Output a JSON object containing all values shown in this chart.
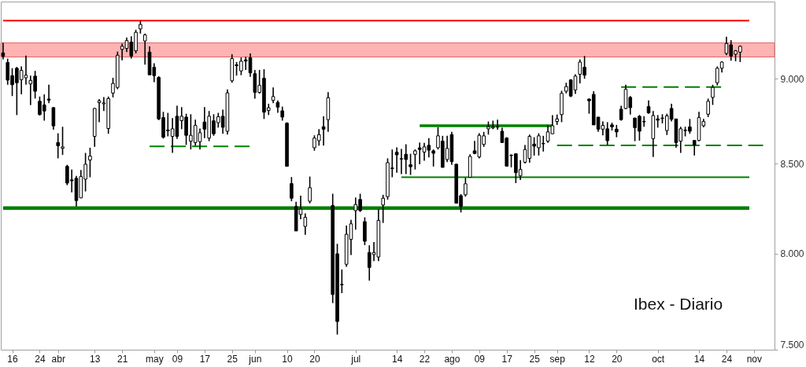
{
  "chart_data": {
    "type": "candlestick",
    "title": "Ibex - Diario",
    "color": "#000000",
    "log": "y",
    "categories": [
      null,
      null,
      "16",
      null,
      null,
      null,
      null,
      null,
      "24",
      null,
      null,
      null,
      "abr",
      null,
      null,
      null,
      null,
      null,
      null,
      null,
      "13",
      null,
      null,
      null,
      null,
      null,
      "21",
      null,
      null,
      null,
      null,
      null,
      null,
      "may",
      null,
      null,
      null,
      null,
      "09",
      null,
      null,
      null,
      null,
      null,
      "17",
      null,
      null,
      null,
      null,
      null,
      "25",
      null,
      null,
      null,
      null,
      "jun",
      null,
      null,
      null,
      null,
      null,
      null,
      "10",
      null,
      null,
      null,
      null,
      null,
      "20",
      null,
      null,
      null,
      null,
      null,
      null,
      null,
      null,
      "jul",
      null,
      null,
      null,
      null,
      null,
      null,
      null,
      null,
      "14",
      null,
      null,
      null,
      null,
      null,
      "22",
      null,
      null,
      null,
      null,
      null,
      "ago",
      null,
      null,
      null,
      null,
      null,
      "09",
      null,
      null,
      null,
      null,
      null,
      "17",
      null,
      null,
      null,
      null,
      null,
      "25",
      null,
      null,
      null,
      null,
      "sep",
      null,
      null,
      null,
      null,
      null,
      null,
      "12",
      null,
      null,
      null,
      null,
      null,
      "20",
      null,
      null,
      null,
      null,
      null,
      null,
      null,
      null,
      "oct",
      null,
      null,
      null,
      null,
      null,
      null,
      null,
      null,
      "14",
      null,
      null,
      null,
      null,
      null,
      "24",
      null,
      null,
      null,
      null,
      null,
      "nov",
      null,
      null,
      null,
      null
    ],
    "ylim": [
      7500,
      9480
    ],
    "yticks": [
      {
        "value": 7500,
        "label": "7.500"
      },
      {
        "value": 8000,
        "label": "8.000"
      },
      {
        "value": 8500,
        "label": "8.500"
      },
      {
        "value": 9000,
        "label": "9.000"
      }
    ],
    "ohlc": [
      [
        9158,
        9220,
        9118,
        9137
      ],
      [
        9099,
        9123,
        8964,
        8992
      ],
      [
        9019,
        9064,
        8896,
        8964
      ],
      [
        9064,
        9072,
        8783,
        8976
      ],
      [
        8995,
        9075,
        8906,
        9051
      ],
      [
        9006,
        9142,
        8964,
        9022
      ],
      [
        8969,
        9019,
        8842,
        8990
      ],
      [
        9016,
        9048,
        8881,
        8925
      ],
      [
        8865,
        8893,
        8780,
        8786
      ],
      [
        8843,
        8906,
        8750,
        8807
      ],
      [
        8878,
        8964,
        8854,
        8872
      ],
      [
        8827,
        8830,
        8697,
        8719
      ],
      [
        8622,
        8676,
        8531,
        8603
      ],
      [
        8589,
        8714,
        8551,
        8597
      ],
      [
        8485,
        8494,
        8378,
        8390
      ],
      [
        8408,
        8467,
        8338,
        8403
      ],
      [
        8417,
        8431,
        8259,
        8292
      ],
      [
        8307,
        8464,
        8305,
        8427
      ],
      [
        8412,
        8562,
        8343,
        8497
      ],
      [
        8521,
        8592,
        8423,
        8544
      ],
      [
        8658,
        8825,
        8597,
        8822
      ],
      [
        8857,
        8878,
        8741,
        8867
      ],
      [
        8850,
        8890,
        8807,
        8855
      ],
      [
        8704,
        8893,
        8673,
        8881
      ],
      [
        8914,
        9006,
        8888,
        8972
      ],
      [
        8948,
        9166,
        8937,
        9144
      ],
      [
        9180,
        9216,
        9113,
        9199
      ],
      [
        9186,
        9253,
        9163,
        9234
      ],
      [
        9225,
        9261,
        9123,
        9139
      ],
      [
        9171,
        9302,
        9155,
        9286
      ],
      [
        9307,
        9357,
        9278,
        9335
      ],
      [
        9232,
        9278,
        9086,
        9270
      ],
      [
        9163,
        9199,
        9024,
        9024
      ],
      [
        9070,
        9094,
        8980,
        9019
      ],
      [
        9008,
        9016,
        8753,
        8760
      ],
      [
        8768,
        8802,
        8645,
        8653
      ],
      [
        8695,
        8796,
        8658,
        8690
      ],
      [
        8658,
        8765,
        8562,
        8702
      ],
      [
        8776,
        8838,
        8643,
        8658
      ],
      [
        8750,
        8830,
        8700,
        8776
      ],
      [
        8771,
        8791,
        8608,
        8664
      ],
      [
        8630,
        8788,
        8582,
        8664
      ],
      [
        8622,
        8756,
        8603,
        8722
      ],
      [
        8627,
        8704,
        8582,
        8679
      ],
      [
        8742,
        8830,
        8648,
        8700
      ],
      [
        8648,
        8807,
        8630,
        8776
      ],
      [
        8749,
        8788,
        8661,
        8673
      ],
      [
        8738,
        8796,
        8709,
        8773
      ],
      [
        8776,
        8815,
        8673,
        8711
      ],
      [
        8688,
        8936,
        8668,
        8915
      ],
      [
        8988,
        9150,
        8976,
        9123
      ],
      [
        9085,
        9102,
        9019,
        9080
      ],
      [
        9048,
        9130,
        9022,
        9107
      ],
      [
        9115,
        9134,
        9054,
        9108
      ],
      [
        9128,
        9155,
        9012,
        9036
      ],
      [
        9031,
        9054,
        8881,
        8918
      ],
      [
        8918,
        9054,
        8910,
        8960
      ],
      [
        9003,
        9058,
        8760,
        8800
      ],
      [
        8810,
        8850,
        8783,
        8826
      ],
      [
        8870,
        8948,
        8854,
        8893
      ],
      [
        8858,
        8870,
        8796,
        8830
      ],
      [
        8808,
        8833,
        8750,
        8771
      ],
      [
        8735,
        8740,
        8484,
        8485
      ],
      [
        8387,
        8424,
        8288,
        8305
      ],
      [
        8259,
        8285,
        8124,
        8124
      ],
      [
        8215,
        8319,
        8188,
        8244
      ],
      [
        8149,
        8221,
        8103,
        8199
      ],
      [
        8288,
        8427,
        8276,
        8364
      ],
      [
        8592,
        8664,
        8575,
        8648
      ],
      [
        8633,
        8700,
        8604,
        8668
      ],
      [
        8714,
        8776,
        8604,
        8700
      ],
      [
        8756,
        8920,
        8684,
        8886
      ],
      [
        8264,
        8330,
        7739,
        7784
      ],
      [
        8000,
        8054,
        7577,
        7644
      ],
      [
        7837,
        7916,
        7791,
        7835
      ],
      [
        7944,
        8154,
        7930,
        8106
      ],
      [
        8078,
        8185,
        7993,
        8163
      ],
      [
        8236,
        8309,
        8131,
        8270
      ],
      [
        8298,
        8330,
        8229,
        8236
      ],
      [
        8175,
        8199,
        8047,
        8068
      ],
      [
        8007,
        8046,
        7857,
        7927
      ],
      [
        7996,
        8064,
        7961,
        8007
      ],
      [
        7983,
        8244,
        7961,
        8182
      ],
      [
        8267,
        8324,
        8168,
        8305
      ],
      [
        8314,
        8531,
        8297,
        8506
      ],
      [
        8472,
        8582,
        8423,
        8476
      ],
      [
        8566,
        8594,
        8449,
        8551
      ],
      [
        8529,
        8585,
        8441,
        8527
      ],
      [
        8554,
        8612,
        8441,
        8524
      ],
      [
        8494,
        8557,
        8436,
        8483
      ],
      [
        8554,
        8582,
        8467,
        8574
      ],
      [
        8591,
        8622,
        8497,
        8582
      ],
      [
        8567,
        8620,
        8517,
        8597
      ],
      [
        8606,
        8648,
        8536,
        8578
      ],
      [
        8574,
        8582,
        8484,
        8560
      ],
      [
        8592,
        8711,
        8582,
        8661
      ],
      [
        8630,
        8661,
        8479,
        8479
      ],
      [
        8524,
        8661,
        8509,
        8588
      ],
      [
        8668,
        8684,
        8494,
        8512
      ],
      [
        8497,
        8500,
        8277,
        8277
      ],
      [
        8319,
        8328,
        8226,
        8259
      ],
      [
        8324,
        8420,
        8314,
        8386
      ],
      [
        8423,
        8554,
        8423,
        8542
      ],
      [
        8574,
        8632,
        8554,
        8559
      ],
      [
        8539,
        8676,
        8531,
        8664
      ],
      [
        8611,
        8684,
        8597,
        8661
      ],
      [
        8702,
        8745,
        8668,
        8714
      ],
      [
        8707,
        8750,
        8700,
        8714
      ],
      [
        8714,
        8756,
        8697,
        8712
      ],
      [
        8688,
        8709,
        8622,
        8622
      ],
      [
        8648,
        8653,
        8484,
        8486
      ],
      [
        8549,
        8554,
        8479,
        8547
      ],
      [
        8557,
        8560,
        8390,
        8449
      ],
      [
        8431,
        8521,
        8408,
        8467
      ],
      [
        8509,
        8608,
        8502,
        8582
      ],
      [
        8531,
        8668,
        8506,
        8658
      ],
      [
        8613,
        8653,
        8547,
        8601
      ],
      [
        8592,
        8676,
        8547,
        8661
      ],
      [
        8617,
        8661,
        8570,
        8615
      ],
      [
        8630,
        8722,
        8620,
        8684
      ],
      [
        8673,
        8783,
        8673,
        8720
      ],
      [
        8745,
        8786,
        8725,
        8760
      ],
      [
        8786,
        8928,
        8741,
        8912
      ],
      [
        8925,
        8976,
        8912,
        8953
      ],
      [
        8993,
        8998,
        8890,
        8896
      ],
      [
        8933,
        9027,
        8909,
        9016
      ],
      [
        9027,
        9118,
        8972,
        9102
      ],
      [
        9070,
        9139,
        9000,
        9022
      ],
      [
        8878,
        8881,
        8791,
        8868
      ],
      [
        8906,
        8925,
        8725,
        8725
      ],
      [
        8771,
        8771,
        8684,
        8700
      ],
      [
        8700,
        8745,
        8664,
        8722
      ],
      [
        8702,
        8741,
        8608,
        8633
      ],
      [
        8725,
        8738,
        8692,
        8714
      ],
      [
        8700,
        8725,
        8653,
        8684
      ],
      [
        8818,
        8838,
        8750,
        8756
      ],
      [
        8822,
        8964,
        8818,
        8936
      ],
      [
        8888,
        8896,
        8786,
        8827
      ],
      [
        8765,
        8768,
        8630,
        8709
      ],
      [
        8776,
        8783,
        8633,
        8688
      ],
      [
        8745,
        8776,
        8714,
        8743
      ],
      [
        8833,
        8870,
        8791,
        8796
      ],
      [
        8645,
        8807,
        8539,
        8780
      ],
      [
        8760,
        8783,
        8709,
        8753
      ],
      [
        8765,
        8788,
        8734,
        8763
      ],
      [
        8692,
        8791,
        8666,
        8778
      ],
      [
        8822,
        8850,
        8745,
        8758
      ],
      [
        8760,
        8762,
        8592,
        8622
      ],
      [
        8630,
        8714,
        8562,
        8702
      ],
      [
        8694,
        8714,
        8658,
        8692
      ],
      [
        8713,
        8760,
        8673,
        8688
      ],
      [
        8634,
        8635,
        8547,
        8608
      ],
      [
        8634,
        8802,
        8630,
        8768
      ],
      [
        8720,
        8760,
        8711,
        8745
      ],
      [
        8788,
        8881,
        8771,
        8865
      ],
      [
        8888,
        8964,
        8843,
        8948
      ],
      [
        8976,
        9075,
        8960,
        9064
      ],
      [
        9064,
        9107,
        9038,
        9102
      ],
      [
        9155,
        9258,
        9144,
        9216
      ],
      [
        9208,
        9237,
        9110,
        9139
      ],
      [
        9150,
        9176,
        9107,
        9171
      ],
      [
        9163,
        9204,
        9102,
        9199
      ],
      null,
      null,
      null,
      null,
      null,
      null,
      null
    ],
    "series": [
      {
        "type": "line",
        "color": "#ff0000",
        "values": [
          9359,
          9359,
          9359,
          9359,
          9359,
          9359,
          9359,
          9359,
          9359,
          9359,
          9359,
          9359,
          9359,
          9359,
          9359,
          9359,
          9359,
          9359,
          9359,
          9359,
          9359,
          9359,
          9359,
          9359,
          9359,
          9359,
          9359,
          9359,
          9359,
          9359,
          9359,
          9359,
          9359,
          9359,
          9359,
          9359,
          9359,
          9359,
          9359,
          9359,
          9359,
          9359,
          9359,
          9359,
          9359,
          9359,
          9359,
          9359,
          9359,
          9359,
          9359,
          9359,
          9359,
          9359,
          9359,
          9359,
          9359,
          9359,
          9359,
          9359,
          9359,
          9359,
          9359,
          9359,
          9359,
          9359,
          9359,
          9359,
          9359,
          9359,
          9359,
          9359,
          9359,
          9359,
          9359,
          9359,
          9359,
          9359,
          9359,
          9359,
          9359,
          9359,
          9359,
          9359,
          9359,
          9359,
          9359,
          9359,
          9359,
          9359,
          9359,
          9359,
          9359,
          9359,
          9359,
          9359,
          9359,
          9359,
          9359,
          9359,
          9359,
          9359,
          9359,
          9359,
          9359,
          9359,
          9359,
          9359,
          9359,
          9359,
          9359,
          9359,
          9359,
          9359,
          9359,
          9359,
          9359,
          9359,
          9359,
          9359,
          9359,
          9359,
          9359,
          9359,
          9359,
          9359,
          9359,
          9359,
          9359,
          9359,
          9359,
          9359,
          9359,
          9359,
          9359,
          9359,
          9359,
          9359,
          9359,
          9359,
          9359,
          9359,
          9359,
          9359,
          9359,
          9359,
          9359,
          9359,
          9359,
          9359,
          9359,
          9359,
          9359,
          9359,
          9359,
          9359,
          9359,
          9359,
          9359,
          9359,
          9359,
          9359,
          9359,
          9359,
          null,
          null,
          null,
          null,
          null
        ]
      },
      {
        "type": "line",
        "color": "#008000",
        "values": [
          8250,
          8250,
          8250,
          8250,
          8250,
          8250,
          8250,
          8250,
          8250,
          8250,
          8250,
          8250,
          8250,
          8250,
          8250,
          8250,
          8250,
          8250,
          8250,
          8250,
          8250,
          8250,
          8250,
          8250,
          8250,
          8250,
          8250,
          8250,
          8250,
          8250,
          8250,
          8250,
          8250,
          8250,
          8250,
          8250,
          8250,
          8250,
          8250,
          8250,
          8250,
          8250,
          8250,
          8250,
          8250,
          8250,
          8250,
          8250,
          8250,
          8250,
          8250,
          8250,
          8250,
          8250,
          8250,
          8250,
          8250,
          8250,
          8250,
          8250,
          8250,
          8250,
          8250,
          8250,
          8250,
          8250,
          8250,
          8250,
          8250,
          8250,
          8250,
          8250,
          8250,
          8250,
          8250,
          8250,
          8250,
          8250,
          8250,
          8250,
          8250,
          8250,
          8250,
          8250,
          8250,
          8250,
          8250,
          8250,
          8250,
          8250,
          8250,
          8250,
          8250,
          8250,
          8250,
          8250,
          8250,
          8250,
          8250,
          8250,
          8250,
          8250,
          8250,
          8250,
          8250,
          8250,
          8250,
          8250,
          8250,
          8250,
          8250,
          8250,
          8250,
          8250,
          8250,
          8250,
          8250,
          8250,
          8250,
          8250,
          8250,
          8250,
          8250,
          8250,
          8250,
          8250,
          8250,
          8250,
          8250,
          8250,
          8250,
          8250,
          8250,
          8250,
          8250,
          8250,
          8250,
          8250,
          8250,
          8250,
          8250,
          8250,
          8250,
          8250,
          8250,
          8250,
          8250,
          8250,
          8250,
          8250,
          8250,
          8250,
          8250,
          8250,
          8250,
          8250,
          8250,
          8250,
          8250,
          8250,
          8250,
          8250,
          8250,
          8250,
          null,
          null,
          null,
          null,
          null
        ]
      },
      {
        "type": "line",
        "color": "#008000",
        "values": [
          null,
          null,
          null,
          null,
          null,
          null,
          null,
          null,
          null,
          null,
          null,
          null,
          null,
          null,
          null,
          null,
          null,
          null,
          null,
          null,
          null,
          null,
          null,
          null,
          null,
          null,
          null,
          null,
          null,
          null,
          null,
          null,
          null,
          null,
          null,
          null,
          null,
          null,
          null,
          null,
          null,
          null,
          null,
          null,
          null,
          null,
          null,
          null,
          null,
          null,
          null,
          null,
          null,
          null,
          null,
          null,
          null,
          null,
          null,
          null,
          null,
          null,
          null,
          null,
          null,
          null,
          null,
          null,
          null,
          null,
          null,
          null,
          null,
          null,
          null,
          null,
          null,
          null,
          null,
          null,
          null,
          null,
          null,
          null,
          null,
          null,
          null,
          8423,
          8423,
          8423,
          8423,
          8423,
          8423,
          8423,
          8423,
          8423,
          8423,
          8423,
          8423,
          8423,
          8423,
          8423,
          8423,
          8423,
          8423,
          8423,
          8423,
          8423,
          8423,
          8423,
          8423,
          8423,
          8423,
          8423,
          8423,
          8423,
          8423,
          8423,
          8423,
          8423,
          8423,
          8423,
          8423,
          8423,
          8423,
          8423,
          8423,
          8423,
          8423,
          8423,
          8423,
          8423,
          8423,
          8423,
          8423,
          8423,
          8423,
          8423,
          8423,
          8423,
          8423,
          8423,
          8423,
          8423,
          8423,
          8423,
          8423,
          8423,
          8423,
          8423,
          8423,
          8423,
          8423,
          8423,
          8423,
          8423,
          8423,
          8423,
          8423,
          8423,
          8423,
          8423,
          8423,
          8423,
          null,
          null,
          null,
          null,
          null
        ]
      },
      {
        "type": "line",
        "color": "#008000",
        "values": [
          null,
          null,
          null,
          null,
          null,
          null,
          null,
          null,
          null,
          null,
          null,
          null,
          null,
          null,
          null,
          null,
          null,
          null,
          null,
          null,
          null,
          null,
          null,
          null,
          null,
          null,
          null,
          null,
          null,
          null,
          null,
          null,
          null,
          null,
          null,
          null,
          null,
          null,
          null,
          null,
          null,
          null,
          null,
          null,
          null,
          null,
          null,
          null,
          null,
          null,
          null,
          null,
          null,
          null,
          null,
          null,
          null,
          null,
          null,
          null,
          null,
          null,
          null,
          null,
          null,
          null,
          null,
          null,
          null,
          null,
          null,
          null,
          null,
          null,
          null,
          null,
          null,
          null,
          null,
          null,
          null,
          null,
          null,
          null,
          null,
          null,
          null,
          null,
          null,
          null,
          null,
          8720,
          8720,
          8720,
          8720,
          8720,
          8720,
          8720,
          8720,
          8720,
          8720,
          8720,
          8720,
          8720,
          8720,
          8720,
          8720,
          8720,
          8720,
          8720,
          8720,
          8720,
          8720,
          8720,
          8720,
          8720,
          8720,
          8720,
          8720,
          8720,
          8720,
          null,
          null,
          null,
          null,
          null,
          null,
          null,
          null,
          null,
          null,
          null,
          null,
          null,
          null,
          null,
          null,
          null,
          null,
          null,
          null,
          null,
          null,
          null,
          null,
          null,
          null,
          null,
          null,
          null,
          null,
          null,
          null,
          null,
          null,
          null,
          null,
          null,
          null,
          null,
          null,
          null,
          null,
          null,
          null,
          null,
          null,
          null,
          null
        ]
      },
      {
        "type": "line",
        "color": "#008000",
        "line_style": "dashed",
        "values": [
          null,
          null,
          null,
          null,
          null,
          null,
          null,
          null,
          null,
          null,
          null,
          null,
          null,
          null,
          null,
          null,
          null,
          null,
          null,
          null,
          null,
          null,
          null,
          null,
          null,
          null,
          null,
          null,
          null,
          null,
          null,
          null,
          8600,
          8600,
          8600,
          8600,
          8600,
          8600,
          8600,
          8600,
          8600,
          8600,
          8600,
          8600,
          8600,
          8600,
          8600,
          8600,
          8600,
          8600,
          8600,
          8600,
          8600,
          8600,
          8600,
          null,
          null,
          null,
          null,
          null,
          null,
          null,
          null,
          null,
          null,
          null,
          null,
          null,
          null,
          null,
          null,
          null,
          null,
          null,
          null,
          null,
          null,
          null,
          null,
          null,
          null,
          null,
          null,
          null,
          null,
          null,
          null,
          null,
          null,
          null,
          null,
          null,
          null,
          null,
          null,
          null,
          null,
          null,
          null,
          null,
          null,
          null,
          null,
          null,
          null,
          null,
          null,
          null,
          null,
          null,
          null,
          null,
          null,
          null,
          null,
          null,
          null,
          null,
          null,
          null,
          null,
          null,
          null,
          null,
          null,
          null,
          null,
          null,
          null,
          null,
          null,
          null,
          null,
          null,
          null,
          null,
          null,
          null,
          null,
          null,
          null,
          null,
          null,
          null,
          null,
          null,
          null,
          null,
          null,
          null,
          null,
          null,
          null,
          null,
          null,
          null,
          null,
          null,
          null,
          null,
          null,
          null,
          null,
          null,
          null,
          null,
          null,
          null,
          null
        ]
      },
      {
        "type": "line",
        "color": "#008000",
        "line_style": "dashed",
        "values": [
          null,
          null,
          null,
          null,
          null,
          null,
          null,
          null,
          null,
          null,
          null,
          null,
          null,
          null,
          null,
          null,
          null,
          null,
          null,
          null,
          null,
          null,
          null,
          null,
          null,
          null,
          null,
          null,
          null,
          null,
          null,
          null,
          null,
          null,
          null,
          null,
          null,
          null,
          null,
          null,
          null,
          null,
          null,
          null,
          null,
          null,
          null,
          null,
          null,
          null,
          null,
          null,
          null,
          null,
          null,
          null,
          null,
          null,
          null,
          null,
          null,
          null,
          null,
          null,
          null,
          null,
          null,
          null,
          null,
          null,
          null,
          null,
          null,
          null,
          null,
          null,
          null,
          null,
          null,
          null,
          null,
          null,
          null,
          null,
          null,
          null,
          null,
          null,
          null,
          null,
          null,
          null,
          null,
          null,
          null,
          null,
          null,
          null,
          null,
          null,
          null,
          null,
          null,
          null,
          null,
          null,
          null,
          null,
          null,
          null,
          null,
          null,
          null,
          null,
          null,
          null,
          null,
          null,
          null,
          null,
          null,
          8605,
          8605,
          8605,
          8605,
          8605,
          8605,
          8605,
          8605,
          8605,
          8605,
          8605,
          8605,
          8605,
          8605,
          8605,
          8605,
          8605,
          8605,
          8605,
          8605,
          8605,
          8605,
          8605,
          8605,
          8605,
          8605,
          8605,
          8605,
          8605,
          8605,
          8605,
          8605,
          8605,
          8605,
          8605,
          8605,
          8605,
          8605,
          8605,
          8605,
          8605,
          8605,
          8605,
          8605,
          8605,
          8605,
          null,
          null
        ]
      },
      {
        "type": "line",
        "color": "#008000",
        "line_style": "dashed",
        "values": [
          null,
          null,
          null,
          null,
          null,
          null,
          null,
          null,
          null,
          null,
          null,
          null,
          null,
          null,
          null,
          null,
          null,
          null,
          null,
          null,
          null,
          null,
          null,
          null,
          null,
          null,
          null,
          null,
          null,
          null,
          null,
          null,
          null,
          null,
          null,
          null,
          null,
          null,
          null,
          null,
          null,
          null,
          null,
          null,
          null,
          null,
          null,
          null,
          null,
          null,
          null,
          null,
          null,
          null,
          null,
          null,
          null,
          null,
          null,
          null,
          null,
          null,
          null,
          null,
          null,
          null,
          null,
          null,
          null,
          null,
          null,
          null,
          null,
          null,
          null,
          null,
          null,
          null,
          null,
          null,
          null,
          null,
          null,
          null,
          null,
          null,
          null,
          null,
          null,
          null,
          null,
          null,
          null,
          null,
          null,
          null,
          null,
          null,
          null,
          null,
          null,
          null,
          null,
          null,
          null,
          null,
          null,
          null,
          null,
          null,
          null,
          null,
          null,
          null,
          null,
          null,
          null,
          null,
          null,
          null,
          null,
          null,
          null,
          null,
          null,
          null,
          null,
          null,
          null,
          null,
          null,
          null,
          null,
          null,
          null,
          8950,
          8950,
          8950,
          8950,
          8950,
          8950,
          8950,
          8950,
          8950,
          8950,
          8950,
          8950,
          8950,
          8950,
          8950,
          8950,
          8950,
          8950,
          8950,
          8950,
          8950,
          8950,
          8950,
          null,
          null,
          null,
          null,
          null,
          null,
          null,
          null,
          null,
          null,
          null
        ]
      }
    ],
    "bands": [
      {
        "axis": "y",
        "from": 9133,
        "to": 9220,
        "color": "#ffb3b3"
      }
    ]
  }
}
